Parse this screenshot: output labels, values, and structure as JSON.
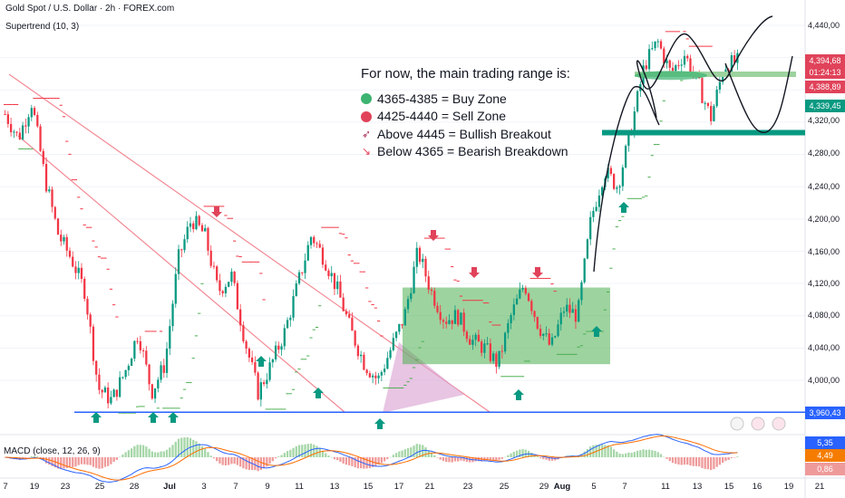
{
  "header": {
    "symbol_line": "Gold Spot / U.S. Dollar · 2h · FOREX.com",
    "indicator": "Supertrend (10, 3)"
  },
  "macd_label": "MACD (close, 12, 26, 9)",
  "note": {
    "title": "For now, the main trading range is:",
    "items": [
      {
        "icon": "green-dot-icon",
        "text": "4365-4385 = Buy Zone"
      },
      {
        "icon": "red-dot-icon",
        "text": "4425-4440 = Sell Zone"
      },
      {
        "icon": "rocket-icon",
        "text": "Above 4445 = Bullish Breakout"
      },
      {
        "icon": "chart-down-icon",
        "text": "Below 4365 = Bearish Breakdown"
      }
    ]
  },
  "price_axis": {
    "ticks": [
      "4,440,00",
      "4,320,00",
      "4,280,00",
      "4,240,00",
      "4,200,00",
      "4,160,00",
      "4,120,00",
      "4,080,00",
      "4,040,00",
      "4,000,00"
    ],
    "labels": [
      {
        "text": "4,394,68",
        "color": "#e0435a"
      },
      {
        "text": "01:24:13",
        "color": "#e0435a"
      },
      {
        "text": "4,388,89",
        "color": "#e0435a"
      },
      {
        "text": "4,339,45",
        "color": "#089981"
      },
      {
        "text": "3,960,43",
        "color": "#2962ff"
      },
      {
        "text": "5,35",
        "color": "#2962ff"
      },
      {
        "text": "4,49",
        "color": "#f57c00"
      },
      {
        "text": "0,86",
        "color": "#ef9a9a"
      }
    ]
  },
  "x_axis": {
    "labels": [
      "7",
      "19",
      "23",
      "25",
      "28",
      "Jul",
      "3",
      "7",
      "9",
      "11",
      "13",
      "15",
      "17",
      "21",
      "23",
      "25",
      "29",
      "Aug",
      "5",
      "7",
      "11",
      "13",
      "15",
      "16",
      "19",
      "21"
    ]
  },
  "chart_data": {
    "type": "candlestick",
    "price_scale": {
      "min": 3935,
      "max": 4460
    },
    "close_path": [
      4330,
      4300,
      4345,
      4250,
      4180,
      4150,
      4110,
      3990,
      3975,
      4010,
      4060,
      3985,
      4020,
      4150,
      4200,
      4180,
      4110,
      4130,
      4050,
      3985,
      4020,
      4060,
      4120,
      4180,
      4150,
      4110,
      4060,
      4020,
      4000,
      4040,
      4080,
      4160,
      4110,
      4075,
      4080,
      4050,
      4040,
      4020,
      4080,
      4120,
      4070,
      4040,
      4090,
      4080,
      4200,
      4260,
      4240,
      4310,
      4390,
      4420,
      4380,
      4405,
      4370,
      4325,
      4390,
      4395
    ],
    "zones": {
      "buy_zone": [
        4365,
        4385
      ],
      "sell_zone": [
        4425,
        4440
      ],
      "bullish_breakout": 4445,
      "bearish_breakdown": 4365
    },
    "support_line": 3960.43,
    "range_box": [
      4020,
      4115
    ],
    "ylabel": "",
    "xlabel": ""
  },
  "colors": {
    "bull": "#089981",
    "bear": "#f23645",
    "support": "#2962ff",
    "zone_green": "#4caf50"
  }
}
